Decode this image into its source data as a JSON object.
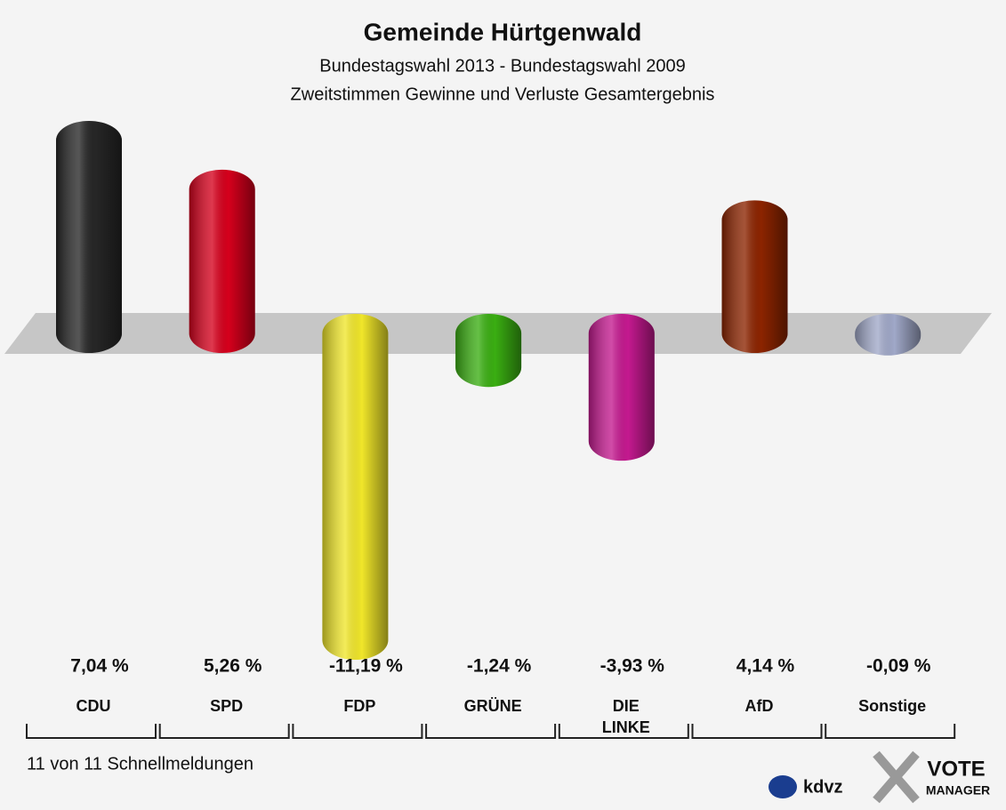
{
  "chart_data": {
    "type": "bar",
    "title": "Gemeinde Hürtgenwald",
    "subtitle": [
      "Bundestagswahl 2013 - Bundestagswahl 2009",
      "Zweitstimmen Gewinne und Verluste Gesamtergebnis"
    ],
    "categories": [
      "CDU",
      "SPD",
      "FDP",
      "GRÜNE",
      "DIE LINKE",
      "AfD",
      "Sonstige"
    ],
    "values": [
      7.04,
      5.26,
      -11.19,
      -1.24,
      -3.93,
      4.14,
      -0.09
    ],
    "value_labels": [
      "7,04 %",
      "5,26 %",
      "-11,19 %",
      "-1,24 %",
      "-3,93 %",
      "4,14 %",
      "-0,09 %"
    ],
    "colors": [
      "#262626",
      "#d5001c",
      "#f0e62a",
      "#3aae12",
      "#c4198f",
      "#8c2400",
      "#a0a8c8"
    ],
    "footer": "11 von 11 Schnellmeldungen",
    "logos": {
      "kdvz": "kdvz",
      "vote": "VOTE",
      "manager": "MANAGER"
    }
  }
}
